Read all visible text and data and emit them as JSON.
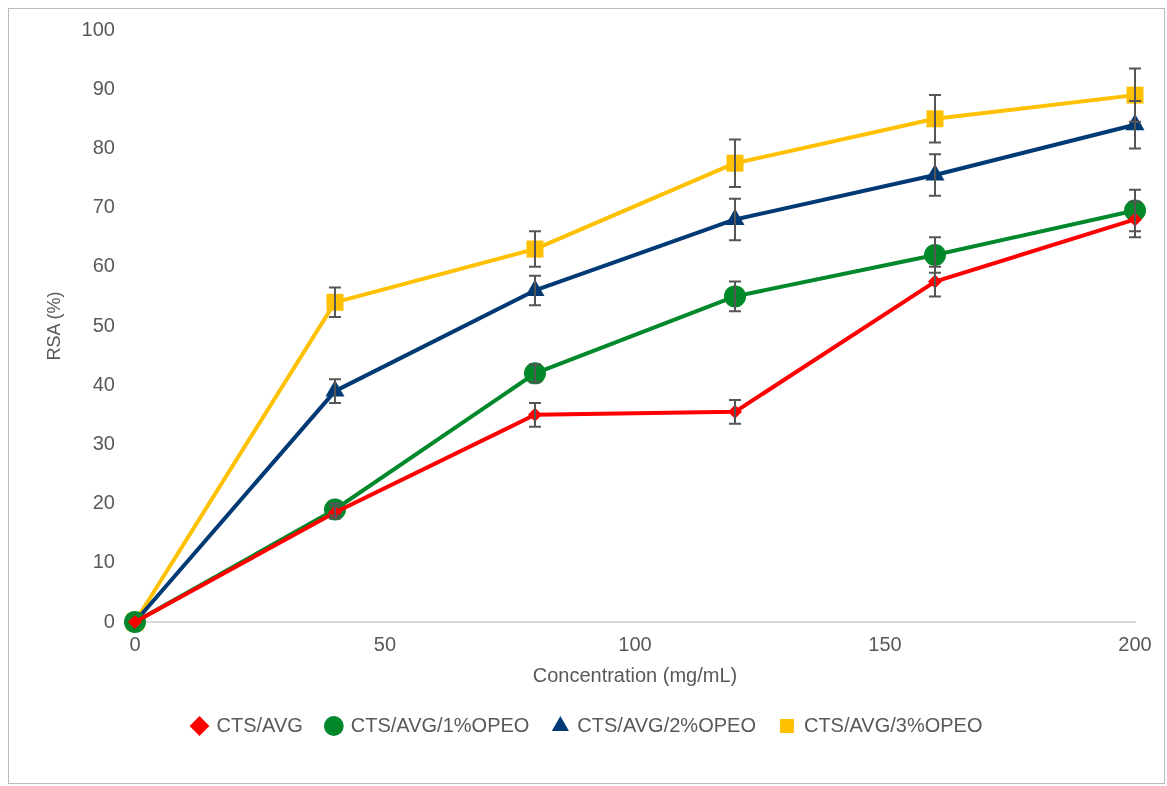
{
  "chart_data": {
    "type": "line",
    "xlabel": "Concentration (mg/mL)",
    "ylabel": "RSA (%)",
    "x": [
      0,
      40,
      80,
      120,
      160,
      200
    ],
    "series": [
      {
        "name": "CTS/AVG",
        "color": "#ff0000",
        "marker": "diamond",
        "values": [
          0,
          18.5,
          35,
          35.5,
          57.5,
          68
        ],
        "errors": [
          null,
          1,
          2,
          2,
          2.5,
          3
        ]
      },
      {
        "name": "CTS/AVG/1%OPEO",
        "color": "#00882b",
        "marker": "circle",
        "values": [
          0,
          19,
          42,
          55,
          62,
          69.5
        ],
        "errors": [
          null,
          1,
          1.5,
          2.5,
          3,
          3.5
        ]
      },
      {
        "name": "CTS/AVG/2%OPEO",
        "color": "#003a75",
        "marker": "triangle",
        "values": [
          0,
          39,
          56,
          68,
          75.5,
          84
        ],
        "errors": [
          null,
          2,
          2.5,
          3.5,
          3.5,
          4
        ]
      },
      {
        "name": "CTS/AVG/3%OPEO",
        "color": "#ffc000",
        "marker": "square",
        "values": [
          0,
          54,
          63,
          77.5,
          85,
          89
        ],
        "errors": [
          null,
          2.5,
          3,
          4,
          4,
          4.5
        ]
      }
    ],
    "xlim": [
      0,
      200
    ],
    "xticks": [
      0,
      50,
      100,
      150,
      200
    ],
    "ylim": [
      0,
      100
    ],
    "yticks": [
      0,
      10,
      20,
      30,
      40,
      50,
      60,
      70,
      80,
      90,
      100
    ],
    "grid": false,
    "legend": "bottom"
  }
}
